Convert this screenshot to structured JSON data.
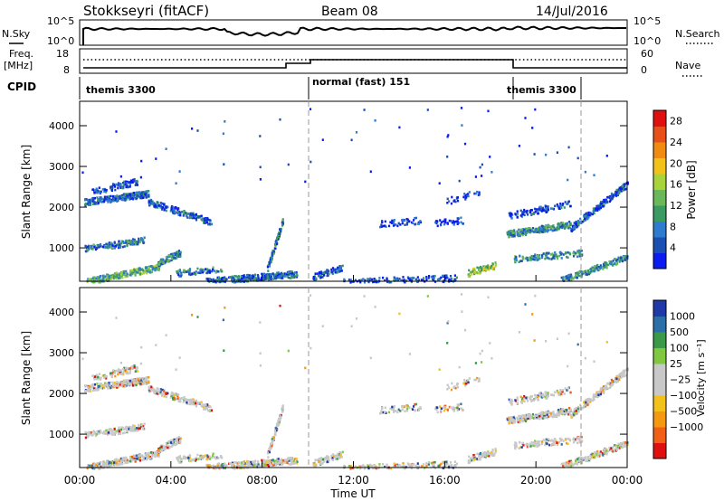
{
  "header": {
    "station": "Stokkseyri (fitACF)",
    "beam": "Beam 08",
    "date": "14/Jul/2016"
  },
  "strip_labels": {
    "nsky": "N.Sky",
    "freq": "Freq.",
    "freq_unit": "[MHz]",
    "cpid": "CPID",
    "nsearch": "N.Search",
    "nave": "Nave",
    "nsky_ticks": [
      "10^5",
      "10^0"
    ],
    "nsearch_ticks": [
      "10^5",
      "10^0"
    ],
    "freq_ticks": [
      "18",
      "8"
    ],
    "nave_ticks": [
      "60",
      "0"
    ]
  },
  "cpid_segments": [
    {
      "label": "themis 3300",
      "start": 0,
      "end": 10
    },
    {
      "label": "normal (fast) 151",
      "start": 10,
      "end": 19
    },
    {
      "label": "themis 3300",
      "start": 19,
      "end": 22
    }
  ],
  "colors": {
    "power": [
      "#0a1cf0",
      "#1c4fb4",
      "#2e7bd0",
      "#3a9a62",
      "#6ab85a",
      "#a9d33a",
      "#f2c21a",
      "#f08a10",
      "#e8501a",
      "#e01010"
    ],
    "velocity": [
      "#e01010",
      "#f26018",
      "#f59a10",
      "#f2c21a",
      "#c8c8c8",
      "#c8c8c8",
      "#80c840",
      "#3a9a4a",
      "#2c6ea8",
      "#1f3aa8"
    ]
  },
  "chart_data": [
    {
      "type": "heatmap",
      "name": "power",
      "ylabel": "Slant Range [km]",
      "xlabel": "Time UT",
      "xlim": [
        0,
        24
      ],
      "ylim": [
        180,
        4600
      ],
      "x_tick_labels": [
        "00:00",
        "04:00",
        "08:00",
        "12:00",
        "16:00",
        "20:00",
        "00:00"
      ],
      "y_tick_labels": [
        "1000",
        "2000",
        "3000",
        "4000"
      ],
      "colorbar_label": "Power [dB]",
      "colorbar_ticks": [
        "4",
        "8",
        "12",
        "16",
        "20",
        "24",
        "28"
      ],
      "colorbar_range": [
        0,
        30
      ]
    },
    {
      "type": "heatmap",
      "name": "velocity",
      "ylabel": "Slant Range [km]",
      "xlabel": "Time UT",
      "xlim": [
        0,
        24
      ],
      "ylim": [
        180,
        4600
      ],
      "x_tick_labels": [
        "00:00",
        "04:00",
        "08:00",
        "12:00",
        "16:00",
        "20:00",
        "00:00"
      ],
      "y_tick_labels": [
        "1000",
        "2000",
        "3000",
        "4000"
      ],
      "colorbar_label": "Velocity [m s⁻¹]",
      "colorbar_ticks": [
        "1000",
        "500",
        "100",
        "25",
        "−25",
        "−100",
        "−500",
        "−1000"
      ]
    }
  ],
  "bottom": {
    "x_tick_labels": [
      "00:00",
      "04:00",
      "08:00",
      "12:00",
      "16:00",
      "20:00",
      "00:00"
    ],
    "xlabel": "Time UT"
  }
}
